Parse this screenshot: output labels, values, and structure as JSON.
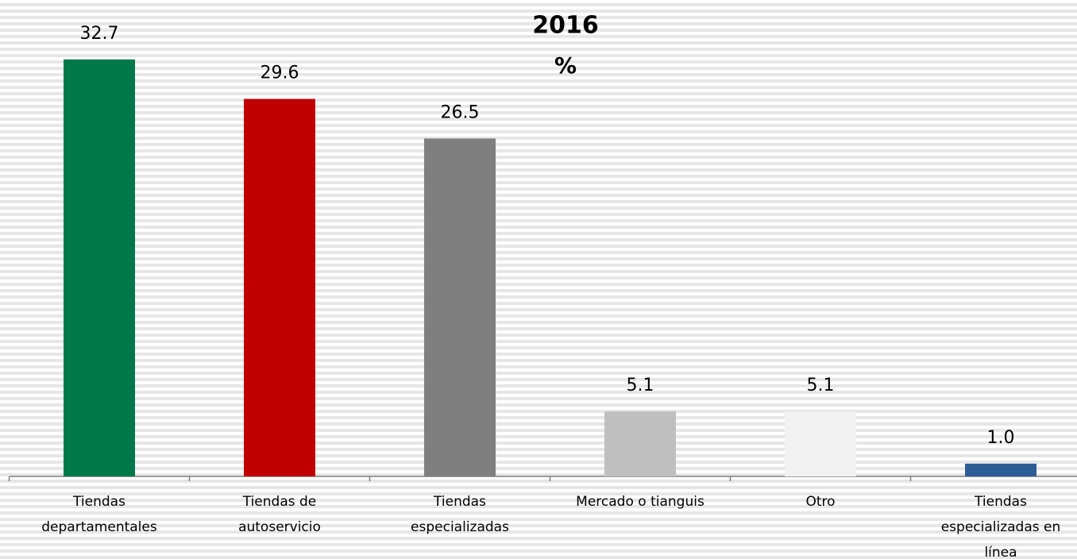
{
  "chart_data": {
    "type": "bar",
    "title": "2016",
    "subtitle": "%",
    "categories": [
      "Tiendas departamentales",
      "Tiendas de autoservicio",
      "Tiendas especializadas",
      "Mercado o tianguis",
      "Otro",
      "Tiendas especializadas en línea"
    ],
    "values": [
      32.7,
      29.6,
      26.5,
      5.1,
      5.1,
      1.0
    ],
    "value_labels": [
      "32.7",
      "29.6",
      "26.5",
      "5.1",
      "5.1",
      "1.0"
    ],
    "colors": [
      "#00784a",
      "#c00000",
      "#7f7f7f",
      "#bfbfbf",
      "#f2f2f2",
      "#2e5c96"
    ]
  }
}
